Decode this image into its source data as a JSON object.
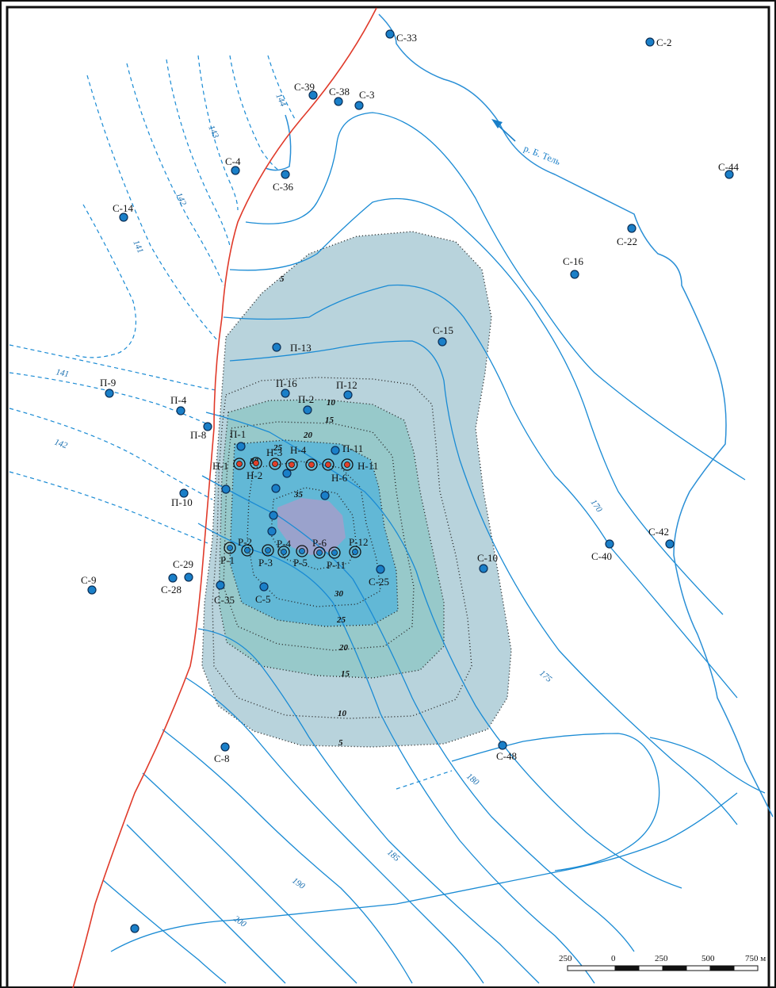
{
  "map": {
    "river_label": "р. Б. Тель",
    "wells_regular": [
      {
        "id": "c33",
        "label": "С-33"
      },
      {
        "id": "c2",
        "label": "С-2"
      },
      {
        "id": "c39",
        "label": "С-39"
      },
      {
        "id": "c38",
        "label": "С-38"
      },
      {
        "id": "c3",
        "label": "С-3"
      },
      {
        "id": "c4",
        "label": "С-4"
      },
      {
        "id": "c36",
        "label": "С-36"
      },
      {
        "id": "c44",
        "label": "С-44"
      },
      {
        "id": "c14",
        "label": "С-14"
      },
      {
        "id": "c22",
        "label": "С-22"
      },
      {
        "id": "c16",
        "label": "С-16"
      },
      {
        "id": "p13",
        "label": "П-13"
      },
      {
        "id": "c15",
        "label": "С-15"
      },
      {
        "id": "p9",
        "label": "П-9"
      },
      {
        "id": "p16",
        "label": "П-16"
      },
      {
        "id": "p12",
        "label": "П-12"
      },
      {
        "id": "p4",
        "label": "П-4"
      },
      {
        "id": "p2",
        "label": "П-2"
      },
      {
        "id": "p8",
        "label": "П-8"
      },
      {
        "id": "p1",
        "label": "П-1"
      },
      {
        "id": "p11",
        "label": "П-11"
      },
      {
        "id": "p10",
        "label": "П-10"
      },
      {
        "id": "c42",
        "label": "С-42"
      },
      {
        "id": "c40",
        "label": "С-40"
      },
      {
        "id": "c10",
        "label": "С-10"
      },
      {
        "id": "c29",
        "label": "С-29"
      },
      {
        "id": "c28",
        "label": "С-28"
      },
      {
        "id": "c9",
        "label": "С-9"
      },
      {
        "id": "c35",
        "label": "С-35"
      },
      {
        "id": "c5",
        "label": "С-5"
      },
      {
        "id": "c25",
        "label": "С-25"
      },
      {
        "id": "c8",
        "label": "С-8"
      },
      {
        "id": "c48",
        "label": "С-48"
      }
    ],
    "wells_h": [
      "Н-1",
      "Н-2",
      "Н-3",
      "Н-4",
      "Н-6",
      "Н-11"
    ],
    "wells_p": [
      "Р-1",
      "Р-2",
      "Р-3",
      "Р-4",
      "Р-5",
      "Р-6",
      "Р-11",
      "Р-12"
    ],
    "isolines_dashed": [
      "144",
      "143",
      "142",
      "141",
      "141",
      "142"
    ],
    "isolines_solid": [
      "170",
      "175",
      "180",
      "185",
      "190",
      "200"
    ],
    "zone_labels": [
      "5",
      "10",
      "15",
      "20",
      "25",
      "30",
      "35",
      "30",
      "25",
      "20",
      "15",
      "10",
      "5"
    ],
    "scale": {
      "ticks": [
        "250",
        "0",
        "250",
        "500",
        "750 м"
      ]
    },
    "colors": {
      "zone_outer": "#b8d3dc",
      "zone_mid": "#97c9ca",
      "zone_inner": "#62b8d6",
      "zone_core": "#9aa2cc",
      "isoline": "#1a8bd4",
      "fault": "#e03a2a"
    }
  }
}
